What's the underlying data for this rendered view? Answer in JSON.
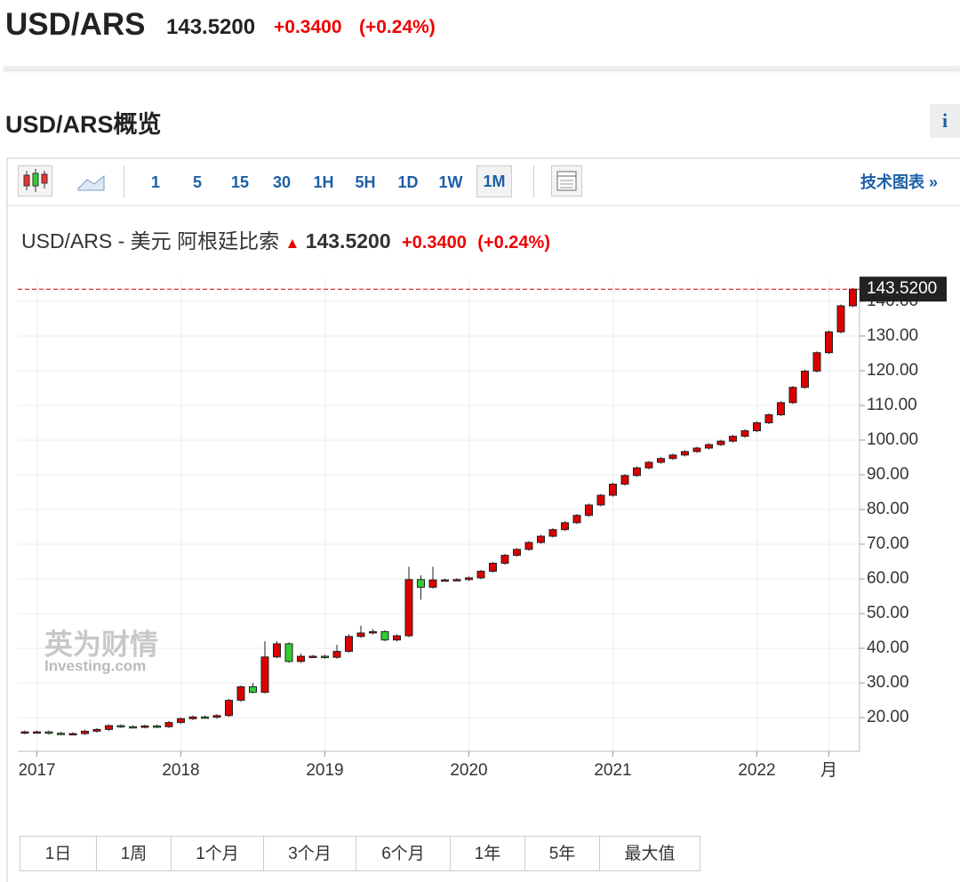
{
  "header": {
    "symbol": "USD/ARS",
    "price": "143.5200",
    "change": "+0.3400",
    "change_pct": "(+0.24%)"
  },
  "overview": {
    "title": "USD/ARS概览",
    "info": "i"
  },
  "toolbar": {
    "intervals": [
      "1",
      "5",
      "15",
      "30",
      "1H",
      "5H",
      "1D",
      "1W",
      "1M"
    ],
    "active": "1M",
    "link": "技术图表 »"
  },
  "chart_data": {
    "type": "candlestick",
    "title": "USD/ARS - 美元 阿根廷比索",
    "price": "143.5200",
    "change": "+0.3400",
    "change_pct": "(+0.24%)",
    "categories": [
      null,
      "2017",
      null,
      null,
      null,
      null,
      null,
      null,
      null,
      null,
      null,
      null,
      null,
      "2018",
      null,
      null,
      null,
      null,
      null,
      null,
      null,
      null,
      null,
      null,
      null,
      "2019",
      null,
      null,
      null,
      null,
      null,
      null,
      null,
      null,
      null,
      null,
      null,
      "2020",
      null,
      null,
      null,
      null,
      null,
      null,
      null,
      null,
      null,
      null,
      null,
      "2021",
      null,
      null,
      null,
      null,
      null,
      null,
      null,
      null,
      null,
      null,
      null,
      "2022",
      null,
      null,
      null,
      null,
      null,
      "月",
      null,
      null
    ],
    "open": [
      15.6,
      15.9,
      15.9,
      15.5,
      15.4,
      15.4,
      16.1,
      16.6,
      17.7,
      17.4,
      17.3,
      17.6,
      17.4,
      18.6,
      19.7,
      20.2,
      20.1,
      20.6,
      25.0,
      28.9,
      27.3,
      37.5,
      41.3,
      36.2,
      37.7,
      37.7,
      37.4,
      39.1,
      43.4,
      44.4,
      44.8,
      42.4,
      43.6,
      59.8,
      57.6,
      59.7,
      59.7,
      59.8,
      60.3,
      62.2,
      64.5,
      66.8,
      68.5,
      70.5,
      72.3,
      74.2,
      76.2,
      78.3,
      81.3,
      84.1,
      87.3,
      89.8,
      92.0,
      93.6,
      94.7,
      95.7,
      96.7,
      97.7,
      98.7,
      99.7,
      101.1,
      102.7,
      105.0,
      107.3,
      110.8,
      115.2,
      119.9,
      125.2,
      131.2,
      138.7
    ],
    "high": [
      16.3,
      16.3,
      16.3,
      15.9,
      15.8,
      16.5,
      17.0,
      18.1,
      18.1,
      17.8,
      18.0,
      18.0,
      19.0,
      20.1,
      20.6,
      20.6,
      21.0,
      25.4,
      29.3,
      30.0,
      42.0,
      42.0,
      41.7,
      38.5,
      38.1,
      38.1,
      41.0,
      44.0,
      46.5,
      45.5,
      45.2,
      44.0,
      63.5,
      61.0,
      63.5,
      60.1,
      60.2,
      60.7,
      62.6,
      64.9,
      67.2,
      68.9,
      70.9,
      72.7,
      74.6,
      76.6,
      78.7,
      81.7,
      84.5,
      87.7,
      90.2,
      92.4,
      94.0,
      95.1,
      96.1,
      97.1,
      98.1,
      99.1,
      100.1,
      101.5,
      103.1,
      105.4,
      107.7,
      111.2,
      115.6,
      120.3,
      125.6,
      131.6,
      139.1,
      143.9
    ],
    "low": [
      15.2,
      15.5,
      15.1,
      15.0,
      15.0,
      15.0,
      15.7,
      16.2,
      17.0,
      16.9,
      16.9,
      17.0,
      17.0,
      18.2,
      19.3,
      19.7,
      19.7,
      20.2,
      24.6,
      27.0,
      27.0,
      37.1,
      35.8,
      35.8,
      37.3,
      37.0,
      37.0,
      38.7,
      43.0,
      44.0,
      42.0,
      42.0,
      43.2,
      54.0,
      57.2,
      59.3,
      59.3,
      59.4,
      59.9,
      61.8,
      64.1,
      66.4,
      68.1,
      70.1,
      71.9,
      73.8,
      75.8,
      77.9,
      80.9,
      83.7,
      86.9,
      89.4,
      91.6,
      93.2,
      94.3,
      95.3,
      96.3,
      97.3,
      98.3,
      99.3,
      100.7,
      102.3,
      104.6,
      106.9,
      110.4,
      114.8,
      119.5,
      124.8,
      130.8,
      138.3
    ],
    "close": [
      15.9,
      15.9,
      15.5,
      15.4,
      15.4,
      16.1,
      16.6,
      17.7,
      17.4,
      17.3,
      17.6,
      17.4,
      18.6,
      19.7,
      20.2,
      20.1,
      20.6,
      25.0,
      28.9,
      27.3,
      37.5,
      41.3,
      36.2,
      37.7,
      37.7,
      37.4,
      39.1,
      43.4,
      44.4,
      44.8,
      42.4,
      43.6,
      59.8,
      57.6,
      59.7,
      59.7,
      59.8,
      60.3,
      62.2,
      64.5,
      66.8,
      68.5,
      70.5,
      72.3,
      74.2,
      76.2,
      78.3,
      81.3,
      84.1,
      87.3,
      89.8,
      92.0,
      93.6,
      94.7,
      95.7,
      96.7,
      97.7,
      98.7,
      99.7,
      101.1,
      102.7,
      105.0,
      107.3,
      110.8,
      115.2,
      119.9,
      125.2,
      131.2,
      138.7,
      143.52
    ],
    "up_color": "#dd0000",
    "down_color": "#33cc33",
    "grid": true,
    "ylim": [
      10.3,
      146.9
    ],
    "yticks": [
      {
        "value": 20,
        "label": "20.00"
      },
      {
        "value": 30,
        "label": "30.00"
      },
      {
        "value": 40,
        "label": "40.00"
      },
      {
        "value": 50,
        "label": "50.00"
      },
      {
        "value": 60,
        "label": "60.00"
      },
      {
        "value": 70,
        "label": "70.00"
      },
      {
        "value": 80,
        "label": "80.00"
      },
      {
        "value": 90,
        "label": "90.00"
      },
      {
        "value": 100,
        "label": "100.00"
      },
      {
        "value": 110,
        "label": "110.00"
      },
      {
        "value": 120,
        "label": "120.00"
      },
      {
        "value": 130,
        "label": "130.00"
      },
      {
        "value": 140,
        "label": "140.00"
      }
    ],
    "watermark": {
      "brand": "英为财情",
      "site": "Investing.com"
    }
  },
  "ranges": [
    "1日",
    "1周",
    "1个月",
    "3个月",
    "6个月",
    "1年",
    "5年",
    "最大值"
  ]
}
